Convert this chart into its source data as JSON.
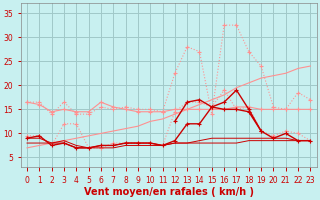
{
  "background_color": "#c8f0f0",
  "grid_color": "#a0c8c8",
  "x_values": [
    0,
    1,
    2,
    3,
    4,
    5,
    6,
    7,
    8,
    9,
    10,
    11,
    12,
    13,
    14,
    15,
    16,
    17,
    18,
    19,
    20,
    21,
    22,
    23
  ],
  "series": [
    {
      "name": "rafales_top_dotted",
      "color": "#ff9090",
      "linewidth": 0.8,
      "linestyle": "dotted",
      "marker": "+",
      "markersize": 3,
      "y": [
        16.5,
        16.5,
        14.0,
        16.5,
        14.0,
        14.0,
        15.5,
        15.0,
        15.5,
        15.0,
        15.0,
        14.5,
        22.5,
        28.0,
        27.0,
        14.0,
        32.5,
        32.5,
        27.0,
        24.0,
        15.5,
        15.0,
        18.5,
        17.0
      ]
    },
    {
      "name": "vent_top_dotted",
      "color": "#ff9090",
      "linewidth": 0.8,
      "linestyle": "dotted",
      "marker": "+",
      "markersize": 3,
      "y": [
        9.5,
        9.5,
        7.5,
        12.0,
        12.0,
        7.0,
        7.0,
        8.0,
        8.0,
        8.0,
        8.0,
        7.5,
        14.5,
        16.5,
        16.5,
        15.5,
        19.0,
        15.0,
        15.5,
        10.5,
        9.5,
        10.5,
        10.0,
        8.5
      ]
    },
    {
      "name": "trend_solid_pink",
      "color": "#ff9090",
      "linewidth": 0.8,
      "linestyle": "solid",
      "marker": "+",
      "markersize": 3,
      "y": [
        16.5,
        16.0,
        14.5,
        15.0,
        14.5,
        14.5,
        16.5,
        15.5,
        15.0,
        14.5,
        14.5,
        14.5,
        15.0,
        15.0,
        15.0,
        15.0,
        15.0,
        15.5,
        15.5,
        15.0,
        15.0,
        15.0,
        15.0,
        15.0
      ]
    },
    {
      "name": "trend_line_solid",
      "color": "#ff9090",
      "linewidth": 0.8,
      "linestyle": "solid",
      "marker": "None",
      "markersize": 0,
      "y": [
        7.0,
        7.5,
        8.0,
        8.5,
        9.0,
        9.5,
        10.0,
        10.5,
        11.0,
        11.5,
        12.5,
        13.0,
        14.0,
        15.0,
        16.0,
        17.0,
        18.0,
        19.5,
        20.5,
        21.5,
        22.0,
        22.5,
        23.5,
        24.0
      ]
    },
    {
      "name": "rafales_dark",
      "color": "#cc0000",
      "linewidth": 1.0,
      "linestyle": "solid",
      "marker": "+",
      "markersize": 3,
      "y": [
        null,
        null,
        null,
        null,
        null,
        null,
        null,
        null,
        null,
        null,
        null,
        null,
        12.5,
        16.5,
        17.0,
        15.5,
        16.5,
        19.0,
        15.0,
        10.5,
        null,
        null,
        null,
        null
      ]
    },
    {
      "name": "vent_dark_flat",
      "color": "#cc0000",
      "linewidth": 1.0,
      "linestyle": "solid",
      "marker": "+",
      "markersize": 3,
      "y": [
        9.0,
        9.5,
        7.5,
        8.0,
        7.0,
        7.0,
        7.5,
        7.5,
        8.0,
        8.0,
        8.0,
        7.5,
        8.5,
        12.0,
        12.0,
        15.5,
        15.0,
        15.0,
        14.5,
        10.5,
        9.0,
        10.0,
        8.5,
        8.5
      ]
    },
    {
      "name": "flat_dark1",
      "color": "#cc0000",
      "linewidth": 0.7,
      "linestyle": "solid",
      "marker": "None",
      "markersize": 0,
      "y": [
        8.0,
        8.0,
        8.0,
        8.0,
        7.0,
        7.0,
        7.5,
        7.5,
        8.0,
        8.0,
        8.0,
        7.5,
        8.0,
        8.0,
        8.0,
        8.0,
        8.0,
        8.0,
        8.5,
        8.5,
        8.5,
        8.5,
        8.5,
        8.5
      ]
    },
    {
      "name": "flat_dark2",
      "color": "#cc0000",
      "linewidth": 0.7,
      "linestyle": "solid",
      "marker": "None",
      "markersize": 0,
      "y": [
        9.0,
        9.0,
        8.0,
        8.5,
        7.5,
        7.0,
        7.0,
        7.0,
        7.5,
        7.5,
        7.5,
        7.5,
        8.0,
        8.0,
        8.5,
        9.0,
        9.0,
        9.0,
        9.0,
        9.0,
        9.0,
        9.0,
        8.5,
        8.5
      ]
    }
  ],
  "xlabel": "Vent moyen/en rafales ( km/h )",
  "xlim": [
    -0.5,
    23.5
  ],
  "ylim": [
    3,
    37
  ],
  "yticks": [
    5,
    10,
    15,
    20,
    25,
    30,
    35
  ],
  "xticks": [
    0,
    1,
    2,
    3,
    4,
    5,
    6,
    7,
    8,
    9,
    10,
    11,
    12,
    13,
    14,
    15,
    16,
    17,
    18,
    19,
    20,
    21,
    22,
    23
  ],
  "axis_fontsize": 7,
  "tick_fontsize": 5.5
}
